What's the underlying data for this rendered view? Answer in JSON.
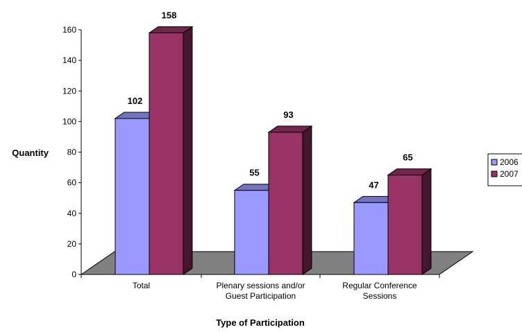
{
  "chart_data": {
    "type": "bar",
    "title": "",
    "xlabel": "Type of Participation",
    "ylabel": "Quantity",
    "ylim": [
      0,
      160
    ],
    "yticks": [
      0,
      20,
      40,
      60,
      80,
      100,
      120,
      140,
      160
    ],
    "categories": [
      [
        "Total"
      ],
      [
        "Plenary sessions and/or",
        "Guest Participation"
      ],
      [
        "Regular Conference",
        "Sessions"
      ]
    ],
    "series": [
      {
        "name": "2006",
        "values": [
          102,
          55,
          47
        ],
        "color": "#9999ff"
      },
      {
        "name": "2007",
        "values": [
          158,
          93,
          65
        ],
        "color": "#993366"
      }
    ],
    "legend": "right",
    "grid": false,
    "style": "3d-clustered-column"
  }
}
